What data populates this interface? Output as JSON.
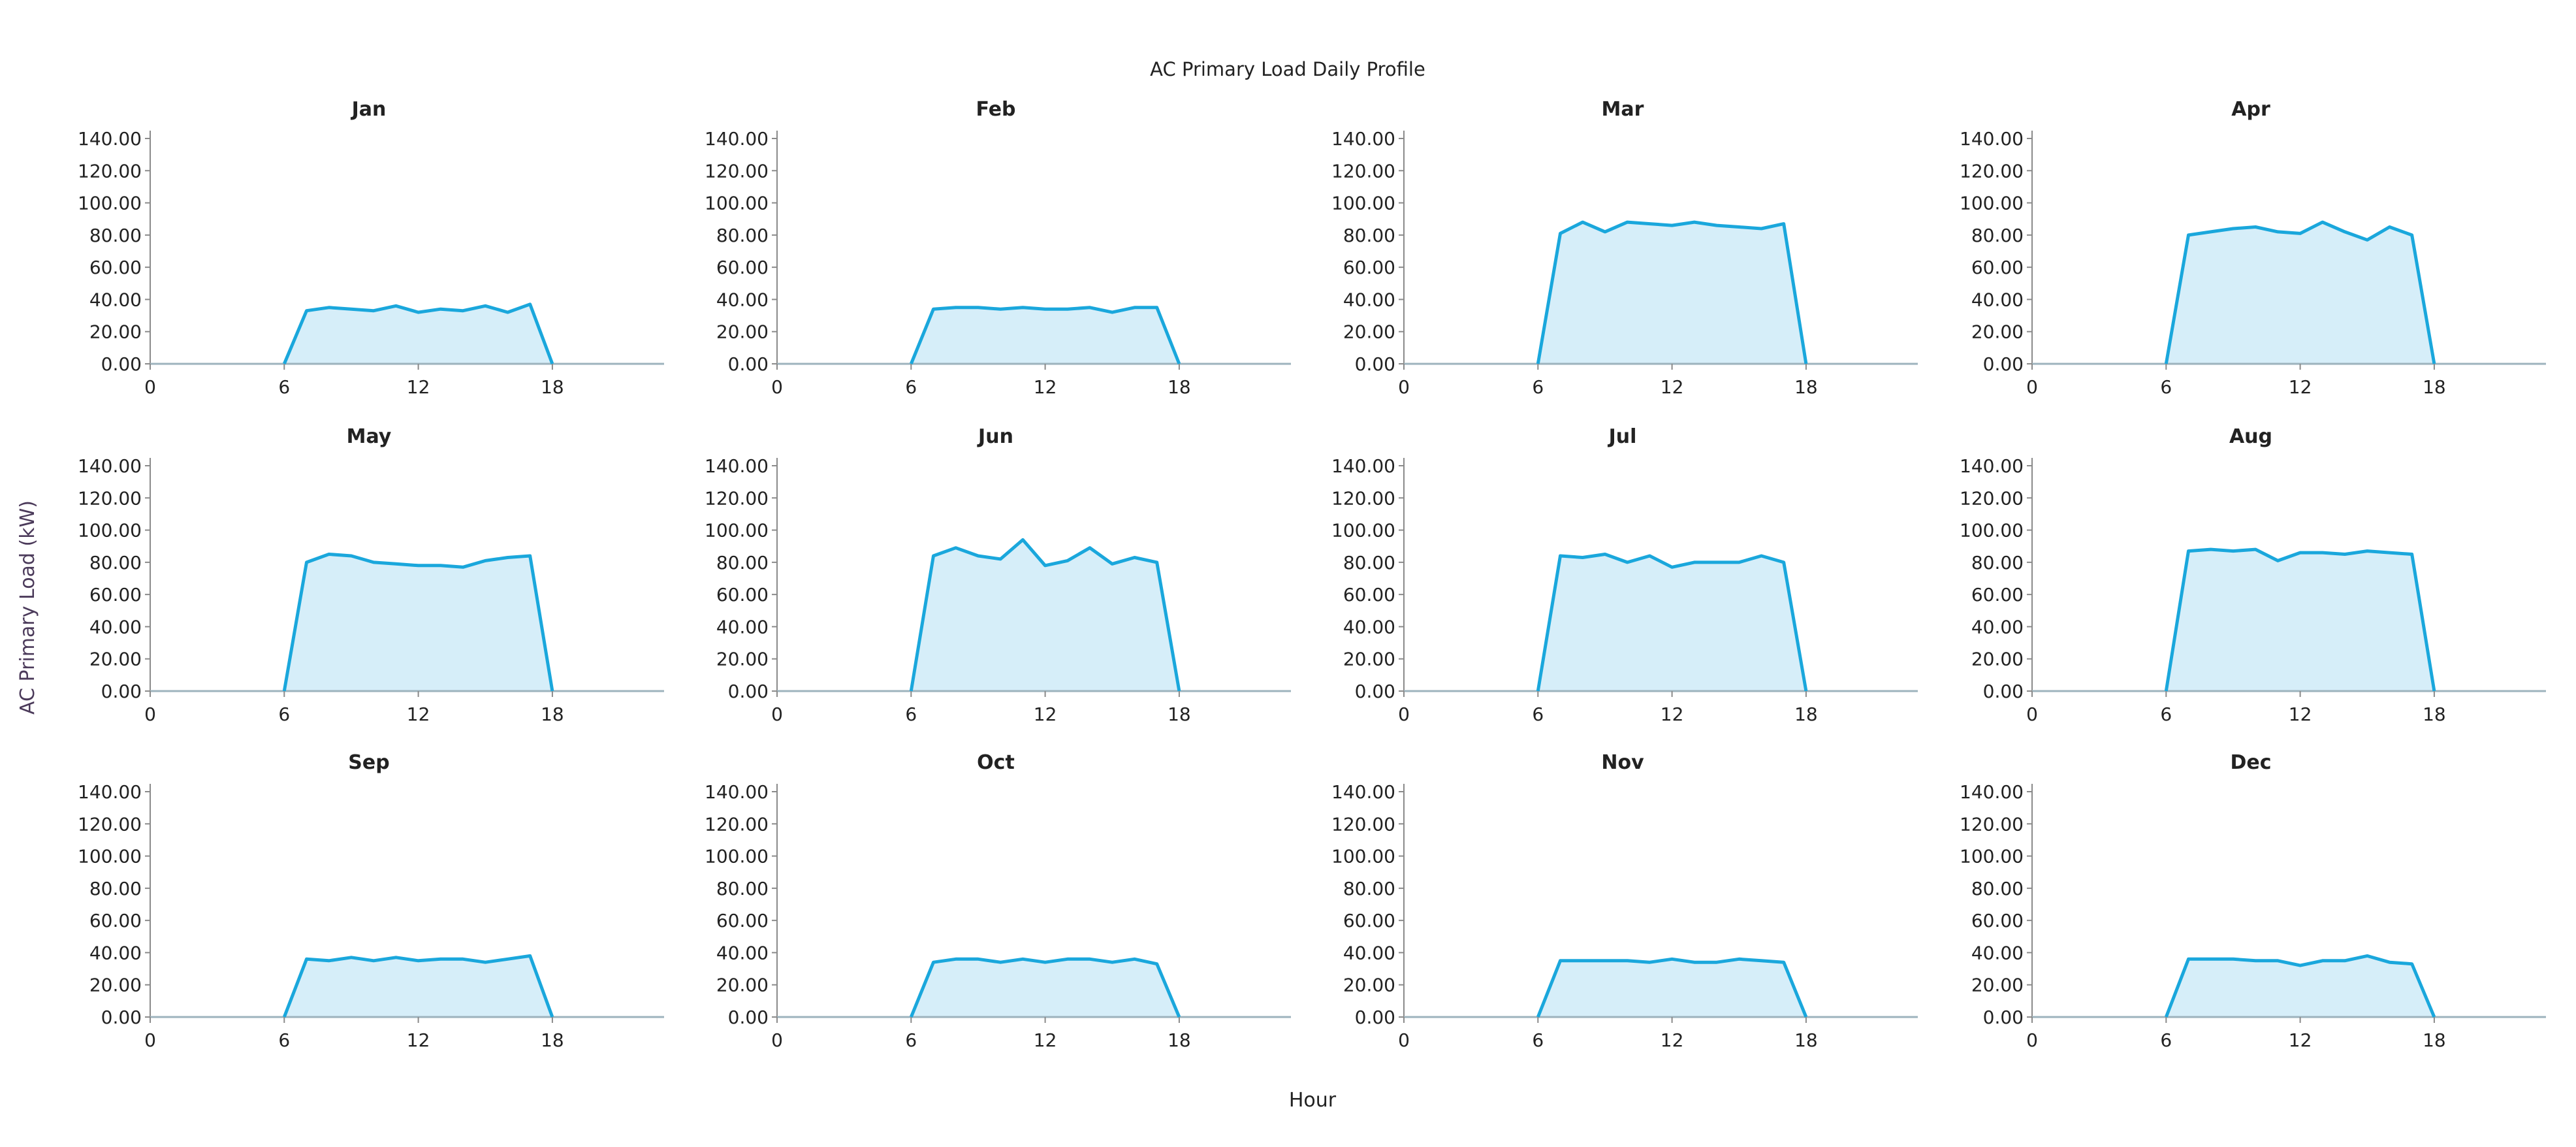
{
  "chart_data": {
    "type": "area",
    "title": "AC Primary Load Daily Profile",
    "xlabel": "Hour",
    "ylabel": "AC Primary Load (kW)",
    "xlim": [
      0,
      23
    ],
    "ylim": [
      0,
      140
    ],
    "xticks": [
      0,
      6,
      12,
      18
    ],
    "yticks": [
      "0.00",
      "20.00",
      "40.00",
      "60.00",
      "80.00",
      "100.00",
      "120.00",
      "140.00"
    ],
    "grid": false,
    "colors": {
      "line": "#1aa7dc",
      "fill": "#d6eef9",
      "axis": "#8a8a8a",
      "baseline": "#9db3bd"
    },
    "panels": [
      {
        "name": "Jan",
        "x": [
          6,
          7,
          8,
          9,
          10,
          11,
          12,
          13,
          14,
          15,
          16,
          17,
          18
        ],
        "values": [
          0,
          33,
          35,
          34,
          33,
          36,
          32,
          34,
          33,
          36,
          32,
          37,
          0
        ]
      },
      {
        "name": "Feb",
        "x": [
          6,
          7,
          8,
          9,
          10,
          11,
          12,
          13,
          14,
          15,
          16,
          17,
          18
        ],
        "values": [
          0,
          34,
          35,
          35,
          34,
          35,
          34,
          34,
          35,
          32,
          35,
          35,
          0
        ]
      },
      {
        "name": "Mar",
        "x": [
          6,
          7,
          8,
          9,
          10,
          11,
          12,
          13,
          14,
          15,
          16,
          17,
          18
        ],
        "values": [
          0,
          81,
          88,
          82,
          88,
          87,
          86,
          88,
          86,
          85,
          84,
          87,
          0
        ]
      },
      {
        "name": "Apr",
        "x": [
          6,
          7,
          8,
          9,
          10,
          11,
          12,
          13,
          14,
          15,
          16,
          17,
          18
        ],
        "values": [
          0,
          80,
          82,
          84,
          85,
          82,
          81,
          88,
          82,
          77,
          85,
          80,
          0
        ]
      },
      {
        "name": "May",
        "x": [
          6,
          7,
          8,
          9,
          10,
          11,
          12,
          13,
          14,
          15,
          16,
          17,
          18
        ],
        "values": [
          0,
          80,
          85,
          84,
          80,
          79,
          78,
          78,
          77,
          81,
          83,
          84,
          0
        ]
      },
      {
        "name": "Jun",
        "x": [
          6,
          7,
          8,
          9,
          10,
          11,
          12,
          13,
          14,
          15,
          16,
          17,
          18
        ],
        "values": [
          0,
          84,
          89,
          84,
          82,
          94,
          78,
          81,
          89,
          79,
          83,
          80,
          0
        ]
      },
      {
        "name": "Jul",
        "x": [
          6,
          7,
          8,
          9,
          10,
          11,
          12,
          13,
          14,
          15,
          16,
          17,
          18
        ],
        "values": [
          0,
          84,
          83,
          85,
          80,
          84,
          77,
          80,
          80,
          80,
          84,
          80,
          0
        ]
      },
      {
        "name": "Aug",
        "x": [
          6,
          7,
          8,
          9,
          10,
          11,
          12,
          13,
          14,
          15,
          16,
          17,
          18
        ],
        "values": [
          0,
          87,
          88,
          87,
          88,
          81,
          86,
          86,
          85,
          87,
          86,
          85,
          0
        ]
      },
      {
        "name": "Sep",
        "x": [
          6,
          7,
          8,
          9,
          10,
          11,
          12,
          13,
          14,
          15,
          16,
          17,
          18
        ],
        "values": [
          0,
          36,
          35,
          37,
          35,
          37,
          35,
          36,
          36,
          34,
          36,
          38,
          0
        ]
      },
      {
        "name": "Oct",
        "x": [
          6,
          7,
          8,
          9,
          10,
          11,
          12,
          13,
          14,
          15,
          16,
          17,
          18
        ],
        "values": [
          0,
          34,
          36,
          36,
          34,
          36,
          34,
          36,
          36,
          34,
          36,
          33,
          0
        ]
      },
      {
        "name": "Nov",
        "x": [
          6,
          7,
          8,
          9,
          10,
          11,
          12,
          13,
          14,
          15,
          16,
          17,
          18
        ],
        "values": [
          0,
          35,
          35,
          35,
          35,
          34,
          36,
          34,
          34,
          36,
          35,
          34,
          0
        ]
      },
      {
        "name": "Dec",
        "x": [
          6,
          7,
          8,
          9,
          10,
          11,
          12,
          13,
          14,
          15,
          16,
          17,
          18
        ],
        "values": [
          0,
          36,
          36,
          36,
          35,
          35,
          32,
          35,
          35,
          38,
          34,
          33,
          0
        ]
      }
    ]
  }
}
